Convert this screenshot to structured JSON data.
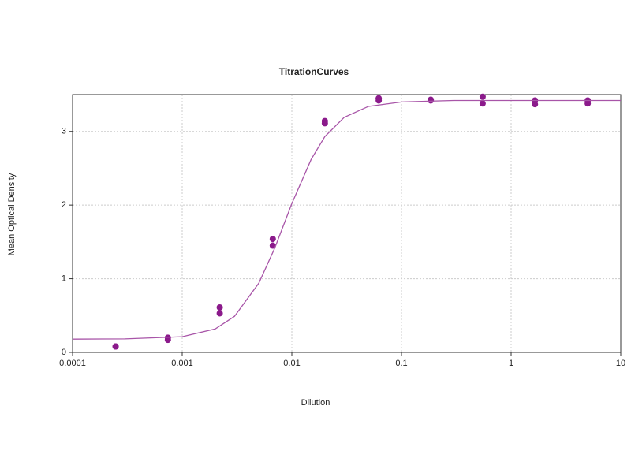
{
  "chart_data": {
    "type": "scatter",
    "title": "TitrationCurves",
    "x_label": "Dilution",
    "y_label": "Mean Optical Density",
    "x_scale": "log",
    "xlim": [
      0.0001,
      10
    ],
    "xticks": [
      0.0001,
      0.001,
      0.01,
      0.1,
      1,
      10
    ],
    "ylim": [
      0,
      3.5
    ],
    "yticks": [
      0,
      1,
      2,
      3
    ],
    "grid": true,
    "series": [
      {
        "style": "markers",
        "color": "#8b1a8b",
        "x": [
          0.000247,
          0.000247,
          0.00074,
          0.00074,
          0.0022,
          0.0022,
          0.0067,
          0.0067,
          0.02,
          0.02,
          0.062,
          0.062,
          0.185,
          0.185,
          0.55,
          0.55,
          1.65,
          1.65,
          5.0,
          5.0
        ],
        "values": [
          0.08,
          0.08,
          0.2,
          0.17,
          0.61,
          0.53,
          1.54,
          1.45,
          3.14,
          3.11,
          3.45,
          3.42,
          3.43,
          3.42,
          3.47,
          3.38,
          3.42,
          3.37,
          3.42,
          3.38
        ]
      },
      {
        "style": "line",
        "color": "#a855a8",
        "x": [
          0.0001,
          0.0003,
          0.001,
          0.002,
          0.003,
          0.005,
          0.007,
          0.01,
          0.015,
          0.02,
          0.03,
          0.05,
          0.1,
          0.3,
          1,
          10
        ],
        "values": [
          0.18,
          0.183,
          0.213,
          0.318,
          0.49,
          0.94,
          1.42,
          2.02,
          2.62,
          2.93,
          3.19,
          3.34,
          3.4,
          3.42,
          3.42,
          3.42
        ]
      }
    ]
  }
}
